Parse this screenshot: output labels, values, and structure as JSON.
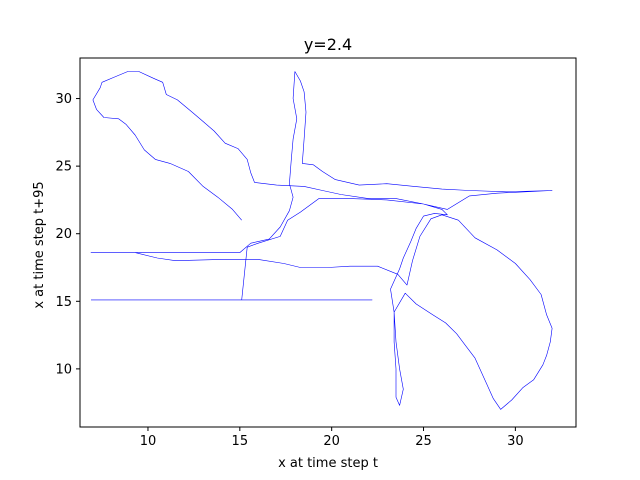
{
  "chart_data": {
    "type": "line",
    "title": "y=2.4",
    "xlabel": "x at time step t",
    "ylabel": "x at time step t+95",
    "xlim": [
      6.3,
      33.3
    ],
    "ylim": [
      5.7,
      33.0
    ],
    "xticks": [
      10,
      15,
      20,
      25,
      30
    ],
    "yticks": [
      10,
      15,
      20,
      25,
      30
    ],
    "grid": false,
    "legend": "none",
    "series_color": "#0000ff",
    "series": [
      {
        "points": [
          [
            15.1,
            21.0
          ],
          [
            14.6,
            21.8
          ],
          [
            13.8,
            22.7
          ],
          [
            13.0,
            23.5
          ],
          [
            12.2,
            24.6
          ],
          [
            11.2,
            25.2
          ],
          [
            10.4,
            25.5
          ],
          [
            9.8,
            26.2
          ],
          [
            9.3,
            27.3
          ],
          [
            8.8,
            28.1
          ],
          [
            8.4,
            28.5
          ],
          [
            7.6,
            28.6
          ],
          [
            7.2,
            29.2
          ],
          [
            7.0,
            29.9
          ],
          [
            7.4,
            30.8
          ],
          [
            7.5,
            31.2
          ],
          [
            8.2,
            31.6
          ],
          [
            8.9,
            32.0
          ],
          [
            9.5,
            32.0
          ],
          [
            10.3,
            31.5
          ],
          [
            10.8,
            31.2
          ],
          [
            11.0,
            30.3
          ],
          [
            11.6,
            29.9
          ],
          [
            12.4,
            29.0
          ],
          [
            13.0,
            28.3
          ],
          [
            13.6,
            27.6
          ],
          [
            14.2,
            26.7
          ],
          [
            14.9,
            26.3
          ],
          [
            15.4,
            25.5
          ],
          [
            15.6,
            24.5
          ],
          [
            15.8,
            23.8
          ],
          [
            17.0,
            23.6
          ],
          [
            18.5,
            23.5
          ],
          [
            19.5,
            23.2
          ],
          [
            20.5,
            22.9
          ],
          [
            22.0,
            22.6
          ],
          [
            23.5,
            22.6
          ],
          [
            25.0,
            22.2
          ],
          [
            26.0,
            21.8
          ],
          [
            26.3,
            21.4
          ],
          [
            25.6,
            21.5
          ],
          [
            25.0,
            21.3
          ],
          [
            24.6,
            20.4
          ],
          [
            24.3,
            19.4
          ],
          [
            23.9,
            18.2
          ],
          [
            23.7,
            17.4
          ],
          [
            23.2,
            15.9
          ],
          [
            23.4,
            14.2
          ],
          [
            23.4,
            12.0
          ],
          [
            23.5,
            10.0
          ],
          [
            23.5,
            7.9
          ],
          [
            23.7,
            7.3
          ],
          [
            23.9,
            8.5
          ],
          [
            23.7,
            10.0
          ],
          [
            23.5,
            12.0
          ],
          [
            23.4,
            14.2
          ],
          [
            24.0,
            15.6
          ],
          [
            24.6,
            14.8
          ],
          [
            25.5,
            14.0
          ],
          [
            26.2,
            13.4
          ],
          [
            26.8,
            12.6
          ],
          [
            27.3,
            11.7
          ],
          [
            27.8,
            10.8
          ],
          [
            28.4,
            9.0
          ],
          [
            28.8,
            7.8
          ],
          [
            29.2,
            7.0
          ],
          [
            29.8,
            7.7
          ],
          [
            30.4,
            8.6
          ],
          [
            31.0,
            9.2
          ],
          [
            31.5,
            10.3
          ],
          [
            31.7,
            11.0
          ],
          [
            31.9,
            12.0
          ],
          [
            32.0,
            13.0
          ],
          [
            31.7,
            14.0
          ],
          [
            31.4,
            15.5
          ],
          [
            30.8,
            16.6
          ],
          [
            30.0,
            17.8
          ],
          [
            29.0,
            18.8
          ],
          [
            27.8,
            19.7
          ],
          [
            26.9,
            21.0
          ],
          [
            26.0,
            21.4
          ],
          [
            25.4,
            21.1
          ],
          [
            24.8,
            19.8
          ],
          [
            24.4,
            18.0
          ],
          [
            24.1,
            16.2
          ],
          [
            23.6,
            17.0
          ],
          [
            22.5,
            17.6
          ],
          [
            21.0,
            17.6
          ],
          [
            19.8,
            17.5
          ],
          [
            18.3,
            17.5
          ],
          [
            17.4,
            17.8
          ],
          [
            16.0,
            18.1
          ],
          [
            14.0,
            18.1
          ],
          [
            11.5,
            18.0
          ],
          [
            10.5,
            18.2
          ],
          [
            9.3,
            18.6
          ],
          [
            6.9,
            18.6
          ],
          [
            15.0,
            18.6
          ],
          [
            15.6,
            19.3
          ],
          [
            16.6,
            19.6
          ],
          [
            17.2,
            20.5
          ],
          [
            17.7,
            21.7
          ],
          [
            17.9,
            22.7
          ],
          [
            17.7,
            23.7
          ],
          [
            17.8,
            25.5
          ],
          [
            17.9,
            27.0
          ],
          [
            18.1,
            28.5
          ],
          [
            17.9,
            30.0
          ],
          [
            18.0,
            32.0
          ],
          [
            18.3,
            31.3
          ],
          [
            18.5,
            30.5
          ],
          [
            18.6,
            29.0
          ],
          [
            18.5,
            27.0
          ],
          [
            18.4,
            25.2
          ],
          [
            19.0,
            25.1
          ],
          [
            19.5,
            24.6
          ],
          [
            20.2,
            24.0
          ],
          [
            21.5,
            23.6
          ],
          [
            23.0,
            23.7
          ],
          [
            24.5,
            23.5
          ],
          [
            26.0,
            23.3
          ],
          [
            27.5,
            23.2
          ],
          [
            29.5,
            23.1
          ],
          [
            32.0,
            23.2
          ],
          [
            29.0,
            23.0
          ],
          [
            27.5,
            22.8
          ],
          [
            26.3,
            21.8
          ],
          [
            25.0,
            22.2
          ],
          [
            23.0,
            22.5
          ],
          [
            21.0,
            22.6
          ],
          [
            19.3,
            22.6
          ],
          [
            18.3,
            21.6
          ],
          [
            17.6,
            21.0
          ],
          [
            17.2,
            19.8
          ],
          [
            16.0,
            19.3
          ],
          [
            15.4,
            19.0
          ],
          [
            15.1,
            15.1
          ],
          [
            22.2,
            15.1
          ],
          [
            6.9,
            15.1
          ]
        ]
      }
    ]
  }
}
